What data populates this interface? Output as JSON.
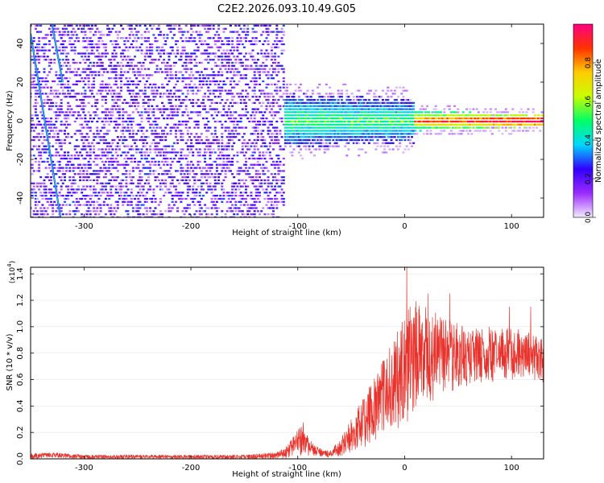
{
  "title": "C2E2.2026.093.10.49.G05",
  "chart_data": [
    {
      "type": "heatmap",
      "name": "spectrogram",
      "xlabel": "Height of straight line (km)",
      "ylabel": "Frequency (Hz)",
      "xlim": [
        -350,
        130
      ],
      "ylim": [
        -50,
        50
      ],
      "xticks": [
        -300,
        -200,
        -100,
        0,
        100
      ],
      "xtick_labels": [
        "-300",
        "-200",
        "-100",
        "0",
        "100"
      ],
      "yticks": [
        -40,
        -20,
        0,
        20,
        40
      ],
      "ytick_labels": [
        "-40",
        "-20",
        "0",
        "20",
        "40"
      ],
      "colorbar": {
        "label": "Normalized spectral amplitude",
        "range": [
          0,
          1
        ],
        "ticks": [
          0.0,
          0.2,
          0.4,
          0.6,
          0.8
        ],
        "tick_labels": [
          "0.0",
          "0.2",
          "0.4",
          "0.6",
          "0.8"
        ],
        "colors": [
          "#f4ecff",
          "#9b2bff",
          "#3000ff",
          "#00d8ff",
          "#00ff66",
          "#c8ff00",
          "#ffcc00",
          "#ff3300",
          "#ff0080"
        ]
      },
      "regions": [
        {
          "name": "noise",
          "x_range": [
            -350,
            -112
          ],
          "amplitude": [
            0.05,
            0.3
          ]
        },
        {
          "name": "signal-onset",
          "x_range": [
            -112,
            10
          ],
          "amplitude": [
            0.25,
            0.55
          ],
          "freq_center": 0
        },
        {
          "name": "signal-locked",
          "x_range": [
            10,
            130
          ],
          "amplitude": [
            0.4,
            0.95
          ],
          "freq_center": 0
        }
      ],
      "tracks": [
        {
          "name": "doppler-track-a",
          "x": [
            -350,
            -322
          ],
          "y": [
            45,
            -50
          ]
        },
        {
          "name": "doppler-track-b",
          "x": [
            -330,
            -320
          ],
          "y": [
            50,
            20
          ]
        }
      ],
      "colors": {
        "noise": "#8a2be2",
        "signal_core": "#00cfff",
        "signal_peak": "#ff2a2a"
      }
    },
    {
      "type": "line",
      "name": "snr",
      "xlabel": "Height of straight line (km)",
      "ylabel": "SNR (10 * v/v)",
      "y_multiplier": "(x10",
      "y_multiplier_exp": "4",
      "y_multiplier_close": ")",
      "xlim": [
        -350,
        130
      ],
      "ylim": [
        0,
        1.45
      ],
      "xticks": [
        -300,
        -200,
        -100,
        0,
        100
      ],
      "xtick_labels": [
        "-300",
        "-200",
        "-100",
        "0",
        "100"
      ],
      "yticks": [
        0.0,
        0.2,
        0.4,
        0.6,
        0.8,
        1.0,
        1.2,
        1.4
      ],
      "ytick_labels": [
        "0.0",
        "0.2",
        "0.4",
        "0.6",
        "0.8",
        "1.0",
        "1.2",
        "1.4"
      ],
      "color": "#e8322b",
      "envelope": {
        "x": [
          -350,
          -330,
          -300,
          -200,
          -150,
          -120,
          -110,
          -100,
          -95,
          -90,
          -80,
          -70,
          -60,
          -50,
          -40,
          -30,
          -20,
          -10,
          0,
          10,
          20,
          30,
          40,
          60,
          80,
          100,
          120,
          130
        ],
        "low": [
          0.0,
          0.01,
          0.0,
          0.0,
          0.0,
          0.0,
          0.0,
          0.02,
          0.03,
          0.02,
          0.02,
          0.01,
          0.02,
          0.05,
          0.08,
          0.12,
          0.18,
          0.22,
          0.25,
          0.35,
          0.4,
          0.45,
          0.5,
          0.55,
          0.58,
          0.6,
          0.6,
          0.55
        ],
        "high": [
          0.04,
          0.05,
          0.03,
          0.03,
          0.03,
          0.05,
          0.1,
          0.22,
          0.28,
          0.15,
          0.08,
          0.06,
          0.15,
          0.3,
          0.45,
          0.6,
          0.75,
          0.9,
          1.1,
          1.2,
          1.15,
          1.1,
          1.05,
          1.0,
          1.0,
          1.0,
          0.95,
          0.9
        ]
      },
      "peaks": [
        {
          "x": 2,
          "y": 1.45
        },
        {
          "x": 22,
          "y": 1.25
        },
        {
          "x": 42,
          "y": 1.25
        },
        {
          "x": 98,
          "y": 1.15
        },
        {
          "x": 118,
          "y": 1.15
        }
      ]
    }
  ]
}
